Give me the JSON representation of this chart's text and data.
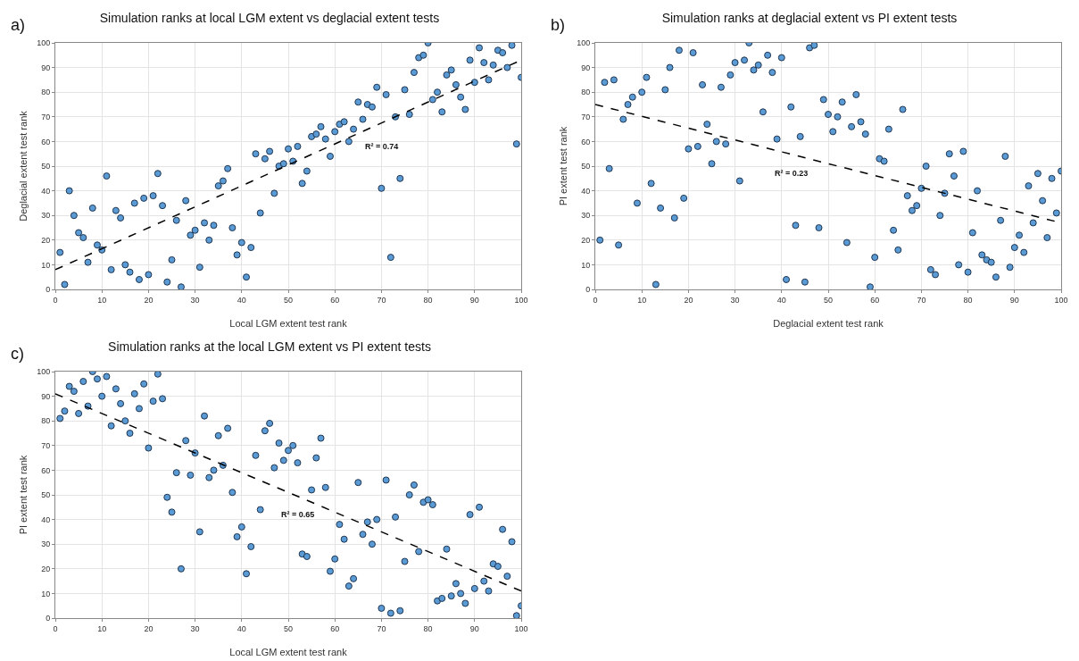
{
  "chart_data": [
    {
      "type": "scatter",
      "title": "Simulation ranks at local LGM extent vs deglacial extent tests",
      "xlabel": "Local LGM extent test rank",
      "ylabel": "Deglacial extent test rank",
      "annotations": [
        "a)",
        "R² = 0.74"
      ],
      "xlim": [
        0,
        100
      ],
      "ylim": [
        0,
        100
      ],
      "xticks": [
        0,
        10,
        20,
        30,
        40,
        50,
        60,
        70,
        80,
        90,
        100
      ],
      "yticks": [
        0,
        10,
        20,
        30,
        40,
        50,
        60,
        70,
        80,
        90,
        100
      ],
      "grid": true,
      "marker": "circle",
      "series": [
        {
          "color": "#5b9bd5",
          "x": [
            1,
            2,
            3,
            4,
            5,
            6,
            7,
            8,
            9,
            10,
            11,
            12,
            13,
            14,
            15,
            16,
            17,
            18,
            19,
            20,
            21,
            22,
            23,
            24,
            25,
            26,
            27,
            28,
            29,
            30,
            31,
            32,
            33,
            34,
            35,
            36,
            37,
            38,
            39,
            40,
            41,
            42,
            43,
            44,
            45,
            46,
            47,
            48,
            49,
            50,
            51,
            52,
            53,
            54,
            55,
            56,
            57,
            58,
            59,
            60,
            61,
            62,
            63,
            64,
            65,
            66,
            67,
            68,
            69,
            70,
            71,
            72,
            73,
            74,
            75,
            76,
            77,
            78,
            79,
            80,
            81,
            82,
            83,
            84,
            85,
            86,
            87,
            88,
            89,
            90,
            91,
            92,
            93,
            94,
            95,
            96,
            97,
            98,
            99,
            100
          ],
          "values": [
            15,
            2,
            40,
            30,
            23,
            21,
            11,
            33,
            18,
            16,
            46,
            8,
            32,
            29,
            10,
            7,
            35,
            4,
            37,
            6,
            38,
            47,
            34,
            3,
            12,
            28,
            1,
            36,
            22,
            24,
            9,
            27,
            20,
            26,
            42,
            44,
            49,
            25,
            14,
            19,
            5,
            17,
            55,
            31,
            53,
            56,
            39,
            50,
            51,
            57,
            52,
            58,
            43,
            48,
            62,
            63,
            66,
            61,
            54,
            64,
            67,
            68,
            60,
            65,
            76,
            69,
            75,
            74,
            82,
            41,
            79,
            13,
            70,
            45,
            81,
            71,
            88,
            94,
            95,
            100,
            77,
            80,
            72,
            87,
            89,
            83,
            78,
            73,
            93,
            84,
            98,
            92,
            85,
            91,
            97,
            96,
            90,
            99,
            59,
            86
          ]
        },
        {
          "type": "line",
          "color": "#000000",
          "line_style": "dashed",
          "marker": "none",
          "x": [
            0,
            100
          ],
          "values": [
            8,
            93
          ]
        }
      ]
    },
    {
      "type": "scatter",
      "title": "Simulation ranks at deglacial extent vs PI extent tests",
      "xlabel": "Deglacial extent test rank",
      "ylabel": "PI extent test rank",
      "annotations": [
        "b)",
        "R² = 0.23"
      ],
      "xlim": [
        0,
        100
      ],
      "ylim": [
        0,
        100
      ],
      "xticks": [
        0,
        10,
        20,
        30,
        40,
        50,
        60,
        70,
        80,
        90,
        100
      ],
      "yticks": [
        0,
        10,
        20,
        30,
        40,
        50,
        60,
        70,
        80,
        90,
        100
      ],
      "grid": true,
      "marker": "circle",
      "series": [
        {
          "color": "#5b9bd5",
          "x": [
            1,
            2,
            3,
            4,
            5,
            6,
            7,
            8,
            9,
            10,
            11,
            12,
            13,
            14,
            15,
            16,
            17,
            18,
            19,
            20,
            21,
            22,
            23,
            24,
            25,
            26,
            27,
            28,
            29,
            30,
            31,
            32,
            33,
            34,
            35,
            36,
            37,
            38,
            39,
            40,
            41,
            42,
            43,
            44,
            45,
            46,
            47,
            48,
            49,
            50,
            51,
            52,
            53,
            54,
            55,
            56,
            57,
            58,
            59,
            60,
            61,
            62,
            63,
            64,
            65,
            66,
            67,
            68,
            69,
            70,
            71,
            72,
            73,
            74,
            75,
            76,
            77,
            78,
            79,
            80,
            81,
            82,
            83,
            84,
            85,
            86,
            87,
            88,
            89,
            90,
            91,
            92,
            93,
            94,
            95,
            96,
            97,
            98,
            99,
            100
          ],
          "values": [
            20,
            84,
            49,
            85,
            18,
            69,
            75,
            78,
            35,
            80,
            86,
            43,
            2,
            33,
            81,
            90,
            29,
            97,
            37,
            57,
            96,
            58,
            83,
            67,
            51,
            60,
            82,
            59,
            87,
            92,
            44,
            93,
            100,
            89,
            91,
            72,
            95,
            88,
            61,
            94,
            4,
            74,
            26,
            62,
            3,
            98,
            99,
            25,
            77,
            71,
            64,
            70,
            76,
            19,
            66,
            79,
            68,
            63,
            1,
            13,
            53,
            52,
            65,
            24,
            16,
            73,
            38,
            32,
            34,
            41,
            50,
            8,
            6,
            30,
            39,
            55,
            46,
            10,
            56,
            7,
            23,
            40,
            14,
            12,
            11,
            5,
            28,
            54,
            9,
            17,
            22,
            15,
            42,
            27,
            47,
            36,
            21,
            45,
            31,
            48
          ]
        },
        {
          "type": "line",
          "color": "#000000",
          "line_style": "dashed",
          "marker": "none",
          "x": [
            0,
            100
          ],
          "values": [
            75,
            27
          ]
        }
      ]
    },
    {
      "type": "scatter",
      "title": "Simulation ranks at the local LGM extent vs PI extent tests",
      "xlabel": "Local LGM extent test rank",
      "ylabel": "PI extent test rank",
      "annotations": [
        "c)",
        "R² = 0.65"
      ],
      "xlim": [
        0,
        100
      ],
      "ylim": [
        0,
        100
      ],
      "xticks": [
        0,
        10,
        20,
        30,
        40,
        50,
        60,
        70,
        80,
        90,
        100
      ],
      "yticks": [
        0,
        10,
        20,
        30,
        40,
        50,
        60,
        70,
        80,
        90,
        100
      ],
      "grid": true,
      "marker": "circle",
      "series": [
        {
          "color": "#5b9bd5",
          "x": [
            1,
            2,
            3,
            4,
            5,
            6,
            7,
            8,
            9,
            10,
            11,
            12,
            13,
            14,
            15,
            16,
            17,
            18,
            19,
            20,
            21,
            22,
            23,
            24,
            25,
            26,
            27,
            28,
            29,
            30,
            31,
            32,
            33,
            34,
            35,
            36,
            37,
            38,
            39,
            40,
            41,
            42,
            43,
            44,
            45,
            46,
            47,
            48,
            49,
            50,
            51,
            52,
            53,
            54,
            55,
            56,
            57,
            58,
            59,
            60,
            61,
            62,
            63,
            64,
            65,
            66,
            67,
            68,
            69,
            70,
            71,
            72,
            73,
            74,
            75,
            76,
            77,
            78,
            79,
            80,
            81,
            82,
            83,
            84,
            85,
            86,
            87,
            88,
            89,
            90,
            91,
            92,
            93,
            94,
            95,
            96,
            97,
            98,
            99,
            100
          ],
          "values": [
            81,
            84,
            94,
            92,
            83,
            96,
            86,
            100,
            97,
            90,
            98,
            78,
            93,
            87,
            80,
            75,
            91,
            85,
            95,
            69,
            88,
            99,
            89,
            49,
            43,
            59,
            20,
            72,
            58,
            67,
            35,
            82,
            57,
            60,
            74,
            62,
            77,
            51,
            33,
            37,
            18,
            29,
            66,
            44,
            76,
            79,
            61,
            71,
            64,
            68,
            70,
            63,
            26,
            25,
            52,
            65,
            73,
            53,
            19,
            24,
            38,
            32,
            13,
            16,
            55,
            34,
            39,
            30,
            40,
            4,
            56,
            2,
            41,
            3,
            23,
            50,
            54,
            27,
            47,
            48,
            46,
            7,
            8,
            28,
            9,
            14,
            10,
            6,
            42,
            12,
            45,
            15,
            11,
            22,
            21,
            36,
            17,
            31,
            1,
            5
          ]
        },
        {
          "type": "line",
          "color": "#000000",
          "line_style": "dashed",
          "marker": "none",
          "x": [
            0,
            100
          ],
          "values": [
            91,
            11
          ]
        }
      ]
    }
  ]
}
